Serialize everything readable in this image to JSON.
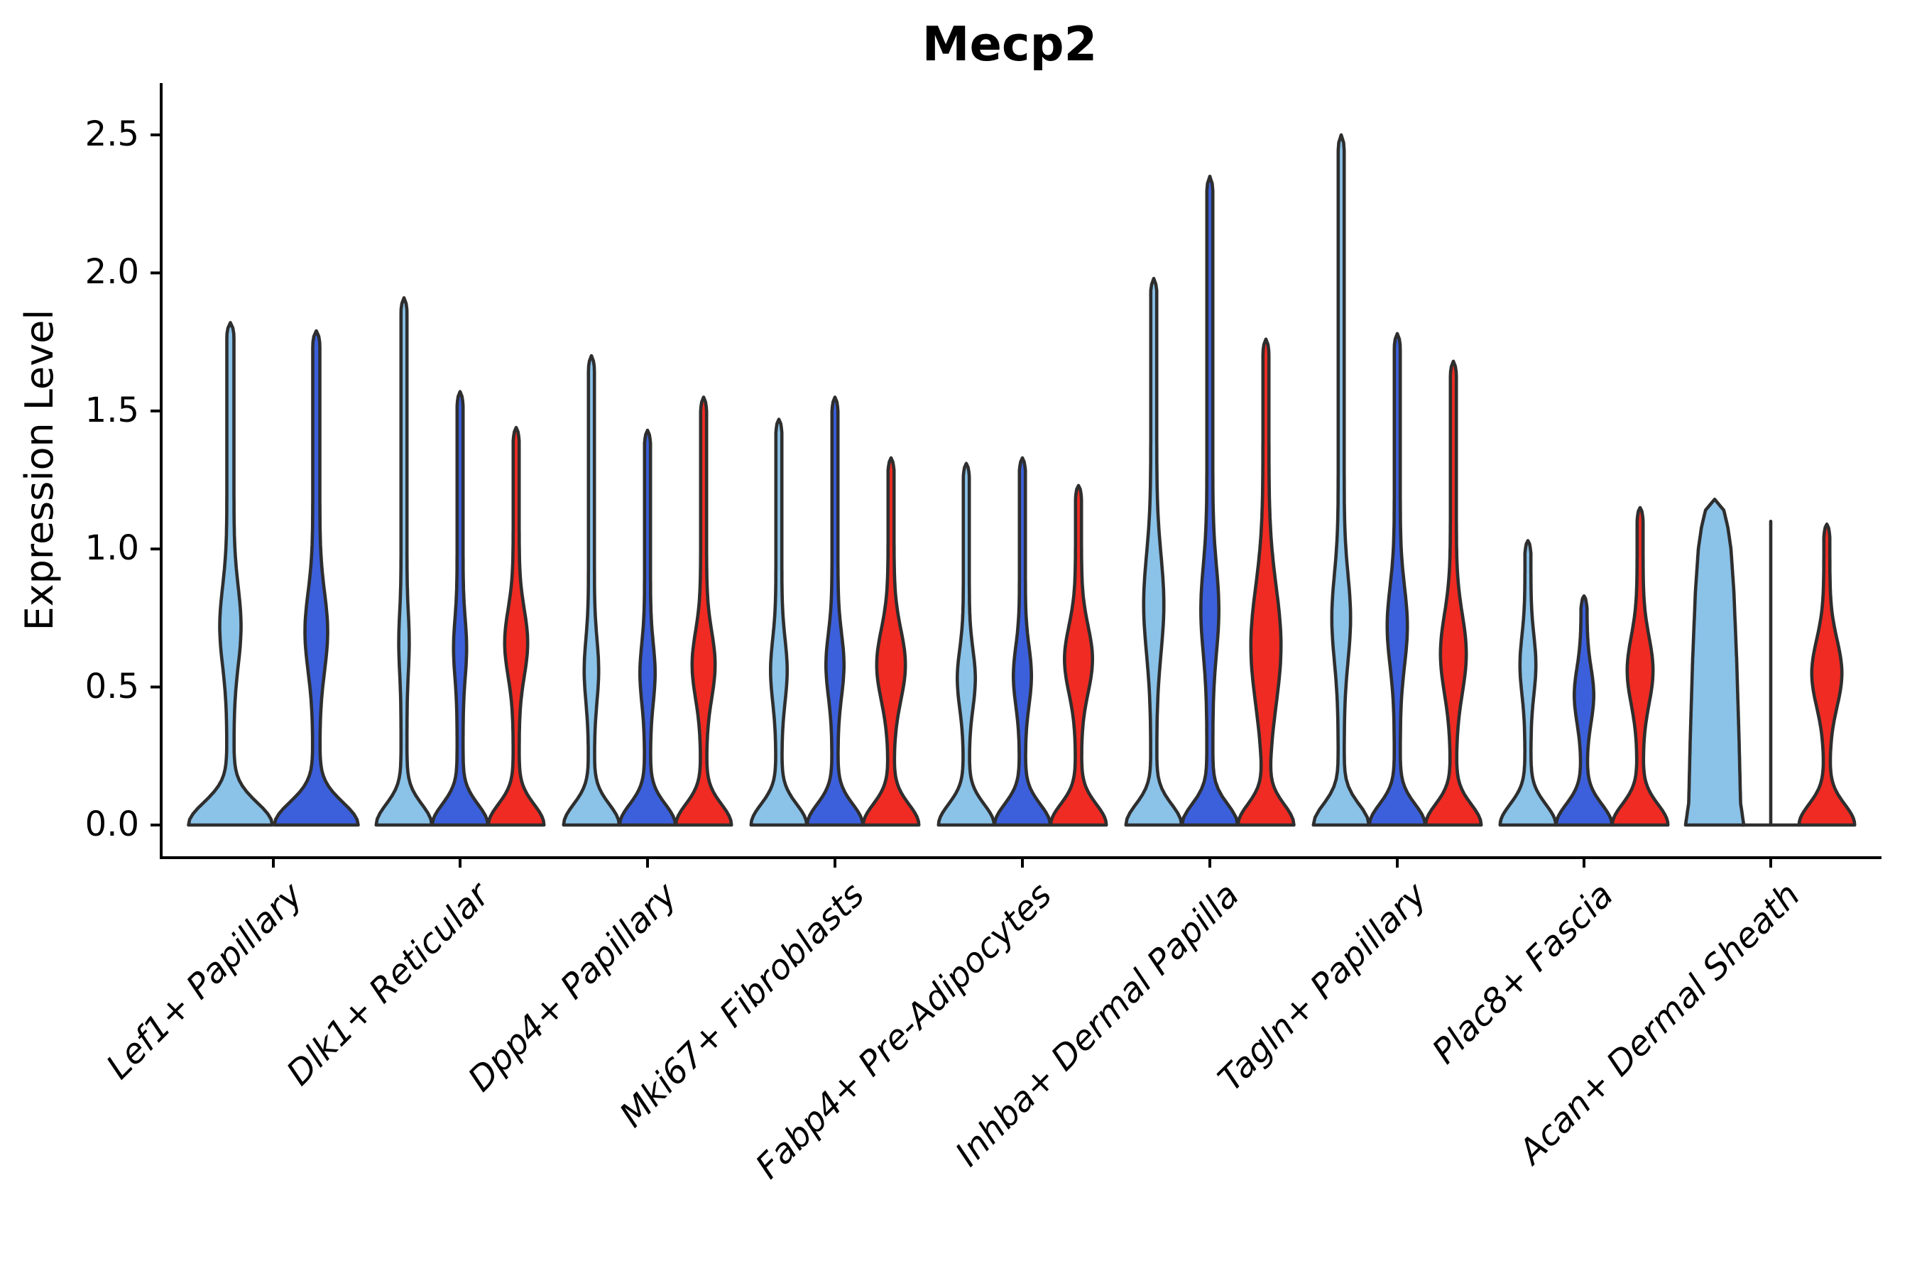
{
  "chart_data": {
    "type": "violin",
    "title": "Mecp2",
    "ylabel": "Expression Level",
    "xlabel": "",
    "ylim": [
      0,
      2.5
    ],
    "grid": false,
    "legend": "none",
    "ytick_values": [
      0,
      0.5,
      1,
      1.5,
      2,
      2.5
    ],
    "ytick_labels": [
      "0.0",
      "0.5",
      "1.0",
      "1.5",
      "2.0",
      "2.5"
    ],
    "palette": {
      "light_blue": "#8AC2E8",
      "dark_blue": "#3C60DB",
      "red": "#F02B23",
      "outline": "#2E2E2E",
      "axis": "#000000"
    },
    "categories": [
      "Lef1+ Papillary",
      "Dlk1+ Reticular",
      "Dpp4+ Papillary",
      "Mki67+ Fibroblasts",
      "Fabp4+ Pre-Adipocytes",
      "Inhba+ Dermal Papilla",
      "Tagln+ Papillary",
      "Plac8+ Fascia",
      "Acan+ Dermal Sheath"
    ],
    "groups": [
      {
        "label": "Lef1+ Papillary",
        "violins": [
          {
            "color": "light_blue",
            "shape": "violin",
            "max": 1.82,
            "dx": -60.5,
            "base": 54,
            "baseSpread": 0.115,
            "spike": 5,
            "bulgeC": 0.72,
            "bulgeW": 10,
            "bulgeS": 0.2
          },
          {
            "color": "dark_blue",
            "shape": "violin",
            "max": 1.79,
            "dx": 60.5,
            "base": 54,
            "baseSpread": 0.115,
            "spike": 5,
            "bulgeC": 0.7,
            "bulgeW": 11,
            "bulgeS": 0.2
          }
        ]
      },
      {
        "label": "Dlk1+ Reticular",
        "violins": [
          {
            "color": "light_blue",
            "shape": "violin",
            "max": 1.91,
            "dx": -79,
            "base": 35,
            "baseSpread": 0.105,
            "spike": 4.2,
            "bulgeC": 0.66,
            "bulgeW": 3.2,
            "bulgeS": 0.15
          },
          {
            "color": "dark_blue",
            "shape": "violin",
            "max": 1.57,
            "dx": 0,
            "base": 35,
            "baseSpread": 0.105,
            "spike": 4.2,
            "bulgeC": 0.64,
            "bulgeW": 5,
            "bulgeS": 0.15
          },
          {
            "color": "red",
            "shape": "violin",
            "max": 1.44,
            "dx": 79,
            "base": 35,
            "baseSpread": 0.105,
            "spike": 4.2,
            "bulgeC": 0.66,
            "bulgeW": 12,
            "bulgeS": 0.17
          }
        ]
      },
      {
        "label": "Dpp4+ Papillary",
        "violins": [
          {
            "color": "light_blue",
            "shape": "violin",
            "max": 1.7,
            "dx": -79,
            "base": 35,
            "baseSpread": 0.105,
            "spike": 4.2,
            "bulgeC": 0.56,
            "bulgeW": 6,
            "bulgeS": 0.16
          },
          {
            "color": "dark_blue",
            "shape": "violin",
            "max": 1.43,
            "dx": 0,
            "base": 35,
            "baseSpread": 0.105,
            "spike": 4.2,
            "bulgeC": 0.55,
            "bulgeW": 6.5,
            "bulgeS": 0.15
          },
          {
            "color": "red",
            "shape": "violin",
            "max": 1.55,
            "dx": 79,
            "base": 35,
            "baseSpread": 0.105,
            "spike": 4.2,
            "bulgeC": 0.58,
            "bulgeW": 12,
            "bulgeS": 0.17
          }
        ]
      },
      {
        "label": "Mki67+ Fibroblasts",
        "violins": [
          {
            "color": "light_blue",
            "shape": "violin",
            "max": 1.47,
            "dx": -79,
            "base": 35,
            "baseSpread": 0.105,
            "spike": 4.2,
            "bulgeC": 0.56,
            "bulgeW": 7.5,
            "bulgeS": 0.16
          },
          {
            "color": "dark_blue",
            "shape": "violin",
            "max": 1.55,
            "dx": 0,
            "base": 35,
            "baseSpread": 0.105,
            "spike": 4.2,
            "bulgeC": 0.58,
            "bulgeW": 8.5,
            "bulgeS": 0.16
          },
          {
            "color": "red",
            "shape": "violin",
            "max": 1.33,
            "dx": 79,
            "base": 35,
            "baseSpread": 0.105,
            "spike": 4.2,
            "bulgeC": 0.58,
            "bulgeW": 16,
            "bulgeS": 0.18
          }
        ]
      },
      {
        "label": "Fabp4+ Pre-Adipocytes",
        "violins": [
          {
            "color": "light_blue",
            "shape": "violin",
            "max": 1.31,
            "dx": -79,
            "base": 35,
            "baseSpread": 0.105,
            "spike": 4.2,
            "bulgeC": 0.53,
            "bulgeW": 8.5,
            "bulgeS": 0.15
          },
          {
            "color": "dark_blue",
            "shape": "violin",
            "max": 1.33,
            "dx": 0,
            "base": 35,
            "baseSpread": 0.105,
            "spike": 4.2,
            "bulgeC": 0.54,
            "bulgeW": 8.5,
            "bulgeS": 0.15
          },
          {
            "color": "red",
            "shape": "violin",
            "max": 1.23,
            "dx": 79,
            "base": 35,
            "baseSpread": 0.105,
            "spike": 4.2,
            "bulgeC": 0.6,
            "bulgeW": 15.5,
            "bulgeS": 0.17
          }
        ]
      },
      {
        "label": "Inhba+ Dermal Papilla",
        "violins": [
          {
            "color": "light_blue",
            "shape": "violin",
            "max": 1.98,
            "dx": -79,
            "base": 35,
            "baseSpread": 0.105,
            "spike": 4.2,
            "bulgeC": 0.8,
            "bulgeW": 10,
            "bulgeS": 0.25
          },
          {
            "color": "dark_blue",
            "shape": "violin",
            "max": 2.35,
            "dx": 0,
            "base": 35,
            "baseSpread": 0.105,
            "spike": 4.2,
            "bulgeC": 0.78,
            "bulgeW": 8.5,
            "bulgeS": 0.22
          },
          {
            "color": "red",
            "shape": "violin",
            "max": 1.76,
            "dx": 79,
            "base": 35,
            "baseSpread": 0.105,
            "spike": 4.2,
            "bulgeC": 0.65,
            "bulgeW": 17,
            "bulgeS": 0.3
          }
        ]
      },
      {
        "label": "Tagln+ Papillary",
        "violins": [
          {
            "color": "light_blue",
            "shape": "violin",
            "max": 2.5,
            "dx": -79,
            "base": 35,
            "baseSpread": 0.105,
            "spike": 4.2,
            "bulgeC": 0.75,
            "bulgeW": 9,
            "bulgeS": 0.22
          },
          {
            "color": "dark_blue",
            "shape": "violin",
            "max": 1.78,
            "dx": 0,
            "base": 35,
            "baseSpread": 0.105,
            "spike": 4.2,
            "bulgeC": 0.72,
            "bulgeW": 10,
            "bulgeS": 0.2
          },
          {
            "color": "red",
            "shape": "violin",
            "max": 1.68,
            "dx": 79,
            "base": 35,
            "baseSpread": 0.105,
            "spike": 4.2,
            "bulgeC": 0.62,
            "bulgeW": 14,
            "bulgeS": 0.2
          }
        ]
      },
      {
        "label": "Plac8+ Fascia",
        "violins": [
          {
            "color": "light_blue",
            "shape": "violin",
            "max": 1.03,
            "dx": -79,
            "base": 35,
            "baseSpread": 0.105,
            "spike": 4.2,
            "bulgeC": 0.58,
            "bulgeW": 7,
            "bulgeS": 0.15
          },
          {
            "color": "dark_blue",
            "shape": "violin",
            "max": 0.83,
            "dx": 0,
            "base": 35,
            "baseSpread": 0.105,
            "spike": 4.2,
            "bulgeC": 0.47,
            "bulgeW": 9.5,
            "bulgeS": 0.14
          },
          {
            "color": "red",
            "shape": "violin",
            "max": 1.15,
            "dx": 79,
            "base": 35,
            "baseSpread": 0.105,
            "spike": 4.2,
            "bulgeC": 0.56,
            "bulgeW": 14,
            "bulgeS": 0.17
          }
        ]
      },
      {
        "label": "Acan+ Dermal Sheath",
        "violins": [
          {
            "color": "light_blue",
            "shape": "points",
            "max": 1.18,
            "dx": -79,
            "points": [
              [
                0,
                41
              ],
              [
                0.08,
                36.5
              ],
              [
                0.3,
                34.5
              ],
              [
                0.6,
                31
              ],
              [
                0.85,
                27
              ],
              [
                1.0,
                23
              ],
              [
                1.08,
                18.5
              ],
              [
                1.14,
                13
              ],
              [
                1.18,
                0
              ]
            ]
          },
          {
            "color": "dark_blue",
            "shape": "line",
            "max": 1.1,
            "dx": 0,
            "footHW": 40
          },
          {
            "color": "red",
            "shape": "violin",
            "max": 1.09,
            "dx": 79,
            "base": 35,
            "baseSpread": 0.105,
            "spike": 4.2,
            "bulgeC": 0.55,
            "bulgeW": 17,
            "bulgeS": 0.17
          }
        ]
      }
    ]
  }
}
